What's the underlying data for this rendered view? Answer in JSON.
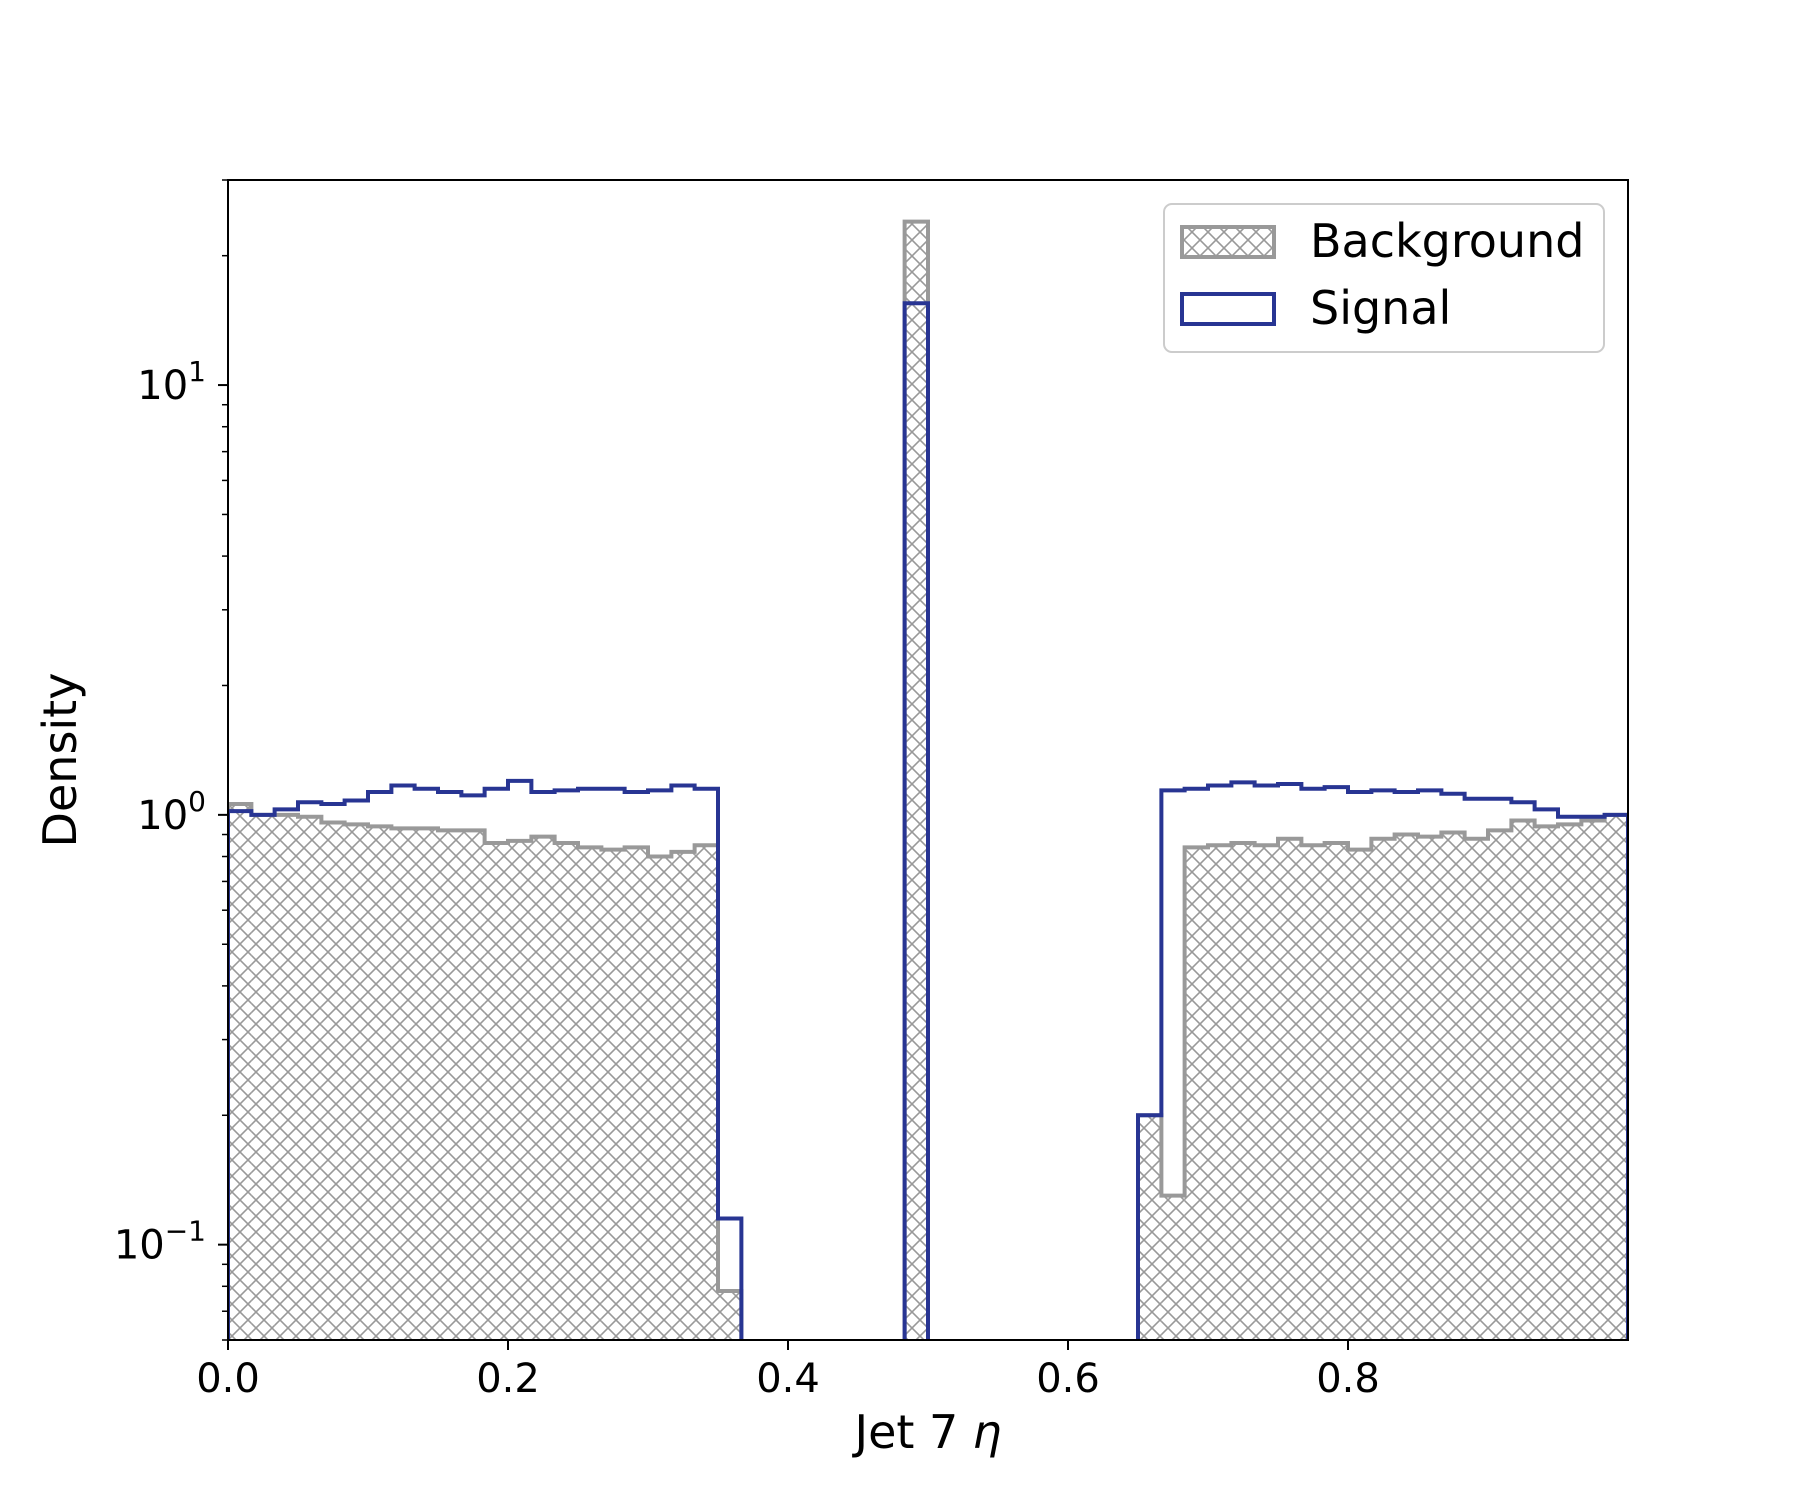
{
  "chart_data": {
    "type": "histogram",
    "xlabel_prefix": "Jet 7",
    "xlabel_symbol": "η",
    "ylabel": "Density",
    "xlim": [
      0.0,
      1.0
    ],
    "ylim": [
      0.06,
      30
    ],
    "yscale": "log",
    "x_ticks": [
      "0.0",
      "0.2",
      "0.4",
      "0.6",
      "0.8"
    ],
    "y_ticks": [
      {
        "value": 10,
        "base": "10",
        "exp": "1"
      },
      {
        "value": 1,
        "base": "10",
        "exp": "0"
      },
      {
        "value": 0.1,
        "base": "10",
        "exp": "−1"
      }
    ],
    "bin_edges": [
      0.0,
      0.0167,
      0.0333,
      0.05,
      0.0667,
      0.0833,
      0.1,
      0.1167,
      0.1333,
      0.15,
      0.1667,
      0.1833,
      0.2,
      0.2167,
      0.2333,
      0.25,
      0.2667,
      0.2833,
      0.3,
      0.3167,
      0.3333,
      0.35,
      0.3667,
      0.3833,
      0.4,
      0.4167,
      0.4333,
      0.45,
      0.4667,
      0.4833,
      0.5,
      0.5167,
      0.5333,
      0.55,
      0.5667,
      0.5833,
      0.6,
      0.6167,
      0.6333,
      0.65,
      0.6667,
      0.6833,
      0.7,
      0.7167,
      0.7333,
      0.75,
      0.7667,
      0.7833,
      0.8,
      0.8167,
      0.8333,
      0.85,
      0.8667,
      0.8833,
      0.9,
      0.9167,
      0.9333,
      0.95,
      0.9667,
      0.9833,
      1.0
    ],
    "series": [
      {
        "name": "Background",
        "color": "#999999",
        "style": "hatched",
        "values": [
          1.06,
          1.0,
          1.0,
          0.99,
          0.96,
          0.95,
          0.94,
          0.93,
          0.93,
          0.92,
          0.92,
          0.86,
          0.87,
          0.89,
          0.86,
          0.84,
          0.83,
          0.84,
          0.8,
          0.82,
          0.85,
          0.078,
          0,
          0,
          0,
          0,
          0,
          0,
          0,
          24.0,
          0,
          0,
          0,
          0,
          0,
          0,
          0,
          0,
          0,
          0.2,
          0.13,
          0.84,
          0.85,
          0.86,
          0.85,
          0.88,
          0.85,
          0.86,
          0.83,
          0.88,
          0.9,
          0.89,
          0.91,
          0.88,
          0.92,
          0.97,
          0.94,
          0.95,
          0.97,
          1.0
        ]
      },
      {
        "name": "Signal",
        "color": "#283593",
        "style": "step",
        "values": [
          1.02,
          1.0,
          1.03,
          1.07,
          1.06,
          1.08,
          1.13,
          1.17,
          1.15,
          1.13,
          1.11,
          1.15,
          1.2,
          1.13,
          1.14,
          1.15,
          1.15,
          1.13,
          1.14,
          1.17,
          1.15,
          0.115,
          0,
          0,
          0,
          0,
          0,
          0,
          0,
          15.5,
          0,
          0,
          0,
          0,
          0,
          0,
          0,
          0,
          0,
          0.2,
          1.14,
          1.15,
          1.17,
          1.19,
          1.17,
          1.18,
          1.15,
          1.16,
          1.13,
          1.14,
          1.13,
          1.14,
          1.12,
          1.09,
          1.09,
          1.07,
          1.03,
          0.99,
          0.99,
          1.0
        ]
      }
    ],
    "legend_position": "top-right"
  }
}
